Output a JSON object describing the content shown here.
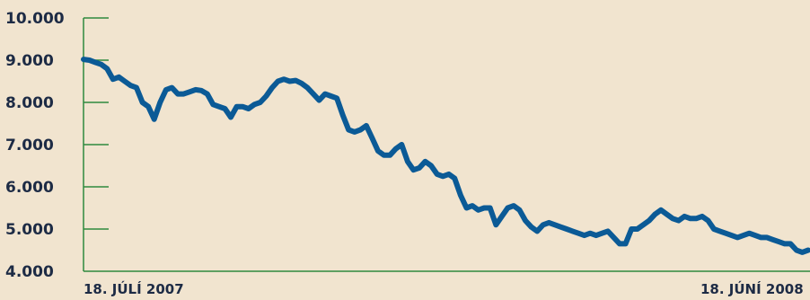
{
  "chart_data": {
    "type": "line",
    "title": "",
    "xlabel": "",
    "ylabel": "",
    "ylim": [
      4000,
      10000
    ],
    "y_ticks": [
      {
        "value": 10000,
        "label": "10.000"
      },
      {
        "value": 9000,
        "label": "9.000"
      },
      {
        "value": 8000,
        "label": "8.000"
      },
      {
        "value": 7000,
        "label": "7.000"
      },
      {
        "value": 6000,
        "label": "6.000"
      },
      {
        "value": 5000,
        "label": "5.000"
      },
      {
        "value": 4000,
        "label": "4.000"
      }
    ],
    "x_labels": {
      "start": "18. JÚLÍ 2007",
      "end": "18. JÚNÍ 2008"
    },
    "grid": false,
    "colors": {
      "line": "#0b5a96",
      "axis": "#2f8a3e",
      "background": "#f1e4cf",
      "text": "#1d2b45"
    },
    "series": [
      {
        "values": [
          9020,
          9000,
          8950,
          8900,
          8800,
          8550,
          8600,
          8500,
          8400,
          8350,
          8000,
          7900,
          7600,
          8000,
          8300,
          8350,
          8200,
          8200,
          8250,
          8300,
          8280,
          8200,
          7950,
          7900,
          7850,
          7650,
          7900,
          7900,
          7850,
          7950,
          8000,
          8150,
          8350,
          8500,
          8550,
          8500,
          8520,
          8450,
          8350,
          8200,
          8050,
          8200,
          8150,
          8100,
          7700,
          7350,
          7300,
          7350,
          7450,
          7150,
          6850,
          6750,
          6750,
          6900,
          7000,
          6600,
          6400,
          6450,
          6600,
          6500,
          6300,
          6250,
          6300,
          6200,
          5800,
          5500,
          5550,
          5450,
          5500,
          5500,
          5100,
          5300,
          5500,
          5550,
          5450,
          5200,
          5050,
          4950,
          5100,
          5150,
          5100,
          5050,
          5000,
          4950,
          4900,
          4850,
          4900,
          4850,
          4900,
          4950,
          4800,
          4650,
          4650,
          5000,
          5000,
          5100,
          5200,
          5350,
          5450,
          5350,
          5250,
          5200,
          5300,
          5250,
          5250,
          5300,
          5200,
          5000,
          4950,
          4900,
          4850,
          4800,
          4850,
          4900,
          4850,
          4800,
          4800,
          4750,
          4700,
          4650,
          4650,
          4500,
          4450,
          4500
        ]
      }
    ]
  }
}
